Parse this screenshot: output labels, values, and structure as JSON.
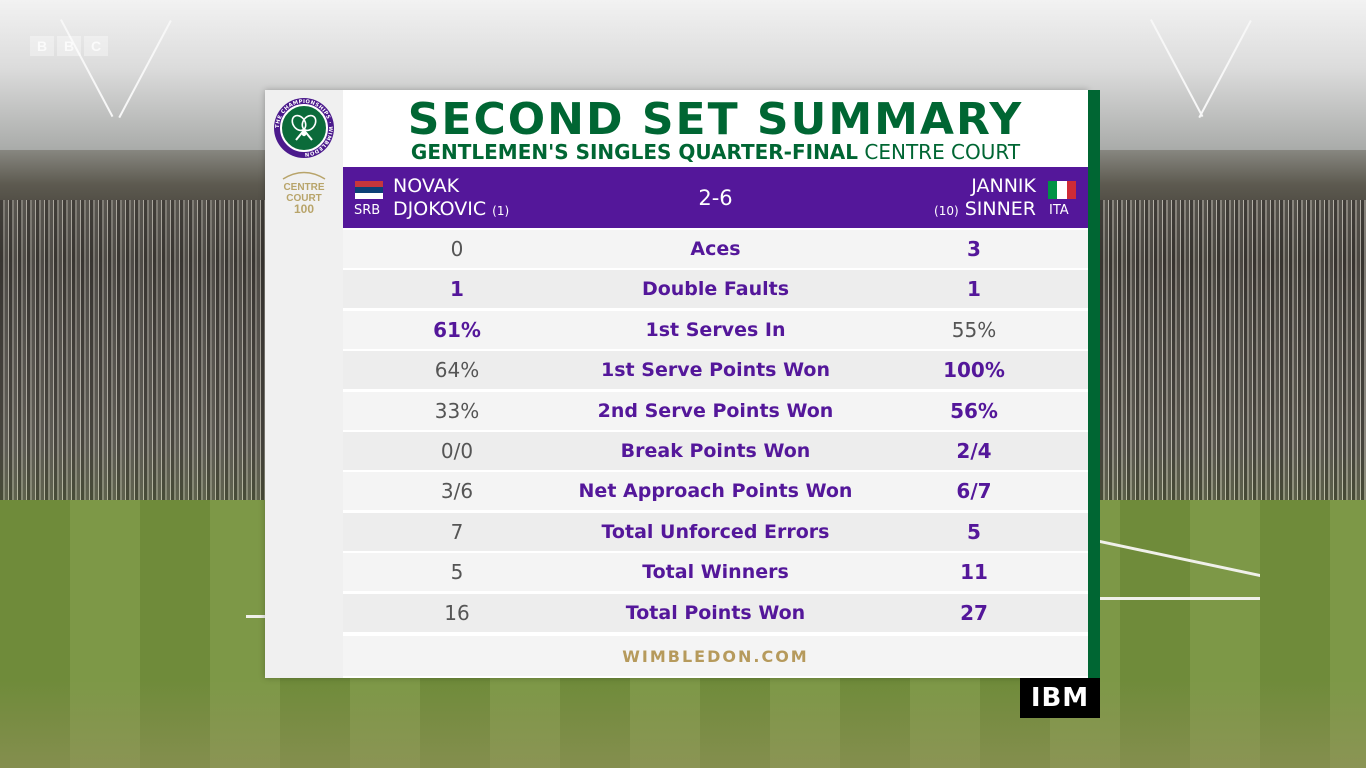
{
  "broadcaster": [
    "B",
    "B",
    "C"
  ],
  "title": "SECOND SET SUMMARY",
  "subtitle": {
    "event": "GENTLEMEN'S SINGLES QUARTER-FINAL",
    "court": "CENTRE COURT"
  },
  "logo": {
    "ring_text": "THE CHAMPIONSHIPS · WIMBLEDON"
  },
  "centre_court": {
    "line1": "CENTRE",
    "line2": "COURT",
    "line3": "100"
  },
  "player1": {
    "first": "NOVAK",
    "last": "DJOKOVIC",
    "seed": "(1)",
    "country": "SRB"
  },
  "player2": {
    "first": "JANNIK",
    "last": "SINNER",
    "seed": "(10)",
    "country": "ITA"
  },
  "set_score": "2-6",
  "stats": [
    {
      "label": "Aces",
      "p1": "0",
      "p2": "3",
      "leader": "p2"
    },
    {
      "label": "Double Faults",
      "p1": "1",
      "p2": "1",
      "leader": "both"
    },
    {
      "label": "1st Serves In",
      "p1": "61%",
      "p2": "55%",
      "leader": "p1"
    },
    {
      "label": "1st Serve Points Won",
      "p1": "64%",
      "p2": "100%",
      "leader": "p2"
    },
    {
      "label": "2nd Serve Points Won",
      "p1": "33%",
      "p2": "56%",
      "leader": "p2"
    },
    {
      "label": "Break Points Won",
      "p1": "0/0",
      "p2": "2/4",
      "leader": "p2"
    },
    {
      "label": "Net Approach Points Won",
      "p1": "3/6",
      "p2": "6/7",
      "leader": "p2"
    },
    {
      "label": "Total Unforced Errors",
      "p1": "7",
      "p2": "5",
      "leader": "p2"
    },
    {
      "label": "Total Winners",
      "p1": "5",
      "p2": "11",
      "leader": "p2"
    },
    {
      "label": "Total Points Won",
      "p1": "16",
      "p2": "27",
      "leader": "p2"
    }
  ],
  "footer": "WIMBLEDON.COM",
  "sponsor": "IBM",
  "colors": {
    "purple": "#54179a",
    "green": "#006633",
    "gold": "#b69a5c"
  }
}
